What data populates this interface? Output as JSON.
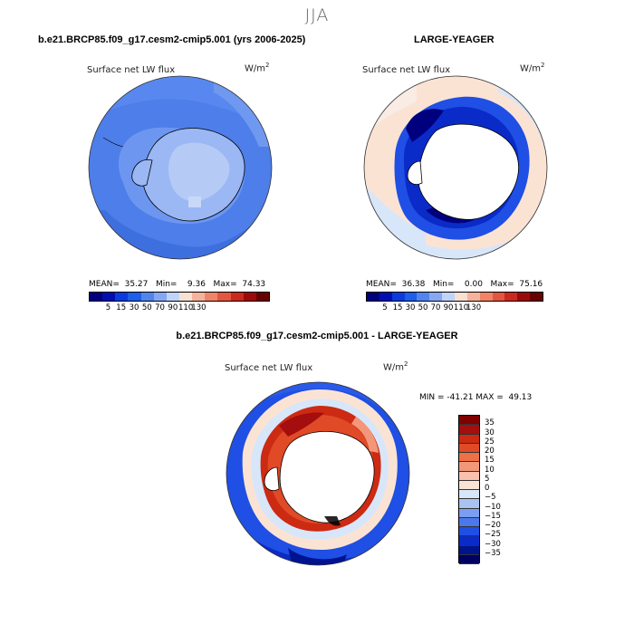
{
  "season": "JJA",
  "panels": [
    {
      "title": "b.e21.BRCP85.f09_g17.cesm2-cmip5.001 (yrs 2006-2025)",
      "variable": "Surface net LW flux",
      "units_base": "W/m",
      "units_exp": "2",
      "stats": "MEAN=  35.27   Min=    9.36   Max=  74.33",
      "colorbar_labels": [
        "5",
        "15",
        "30",
        "50",
        "70",
        "90",
        "110",
        "130"
      ]
    },
    {
      "title": "LARGE-YEAGER",
      "variable": "Surface net LW flux",
      "units_base": "W/m",
      "units_exp": "2",
      "stats": "MEAN=  36.38   Min=    0.00   Max=  75.16",
      "colorbar_labels": [
        "5",
        "15",
        "30",
        "50",
        "70",
        "90",
        "110",
        "130"
      ]
    },
    {
      "title": "b.e21.BRCP85.f09_g17.cesm2-cmip5.001 - LARGE-YEAGER",
      "variable": "Surface net LW flux",
      "units_base": "W/m",
      "units_exp": "2",
      "stats": "MIN = -41.21 MAX =  49.13",
      "colorbar_labels": [
        "35",
        "30",
        "25",
        "20",
        "15",
        "10",
        "5",
        "0",
        "−5",
        "−10",
        "−15",
        "−20",
        "−25",
        "−30",
        "−35"
      ]
    }
  ],
  "colors": {
    "scale12": [
      "#00007f",
      "#0010b0",
      "#0a3bdc",
      "#1e5ee8",
      "#5284ee",
      "#86a8f2",
      "#c0d4f8",
      "#f8e0d2",
      "#f6b39c",
      "#f08468",
      "#e25640",
      "#c92a20",
      "#9b0a0a",
      "#6a0000"
    ],
    "diff": [
      "#7f0000",
      "#a50e0e",
      "#cc2a12",
      "#e04a26",
      "#ee7045",
      "#f3977a",
      "#f8c0ad",
      "#fbe3d4",
      "#d8e6fa",
      "#a9c2f2",
      "#7b9ef0",
      "#4b78ea",
      "#1f4fe4",
      "#0a2bc8",
      "#00138f",
      "#000060"
    ],
    "ocean_cesm": "#4c7de8",
    "land_outline": "#000000"
  }
}
